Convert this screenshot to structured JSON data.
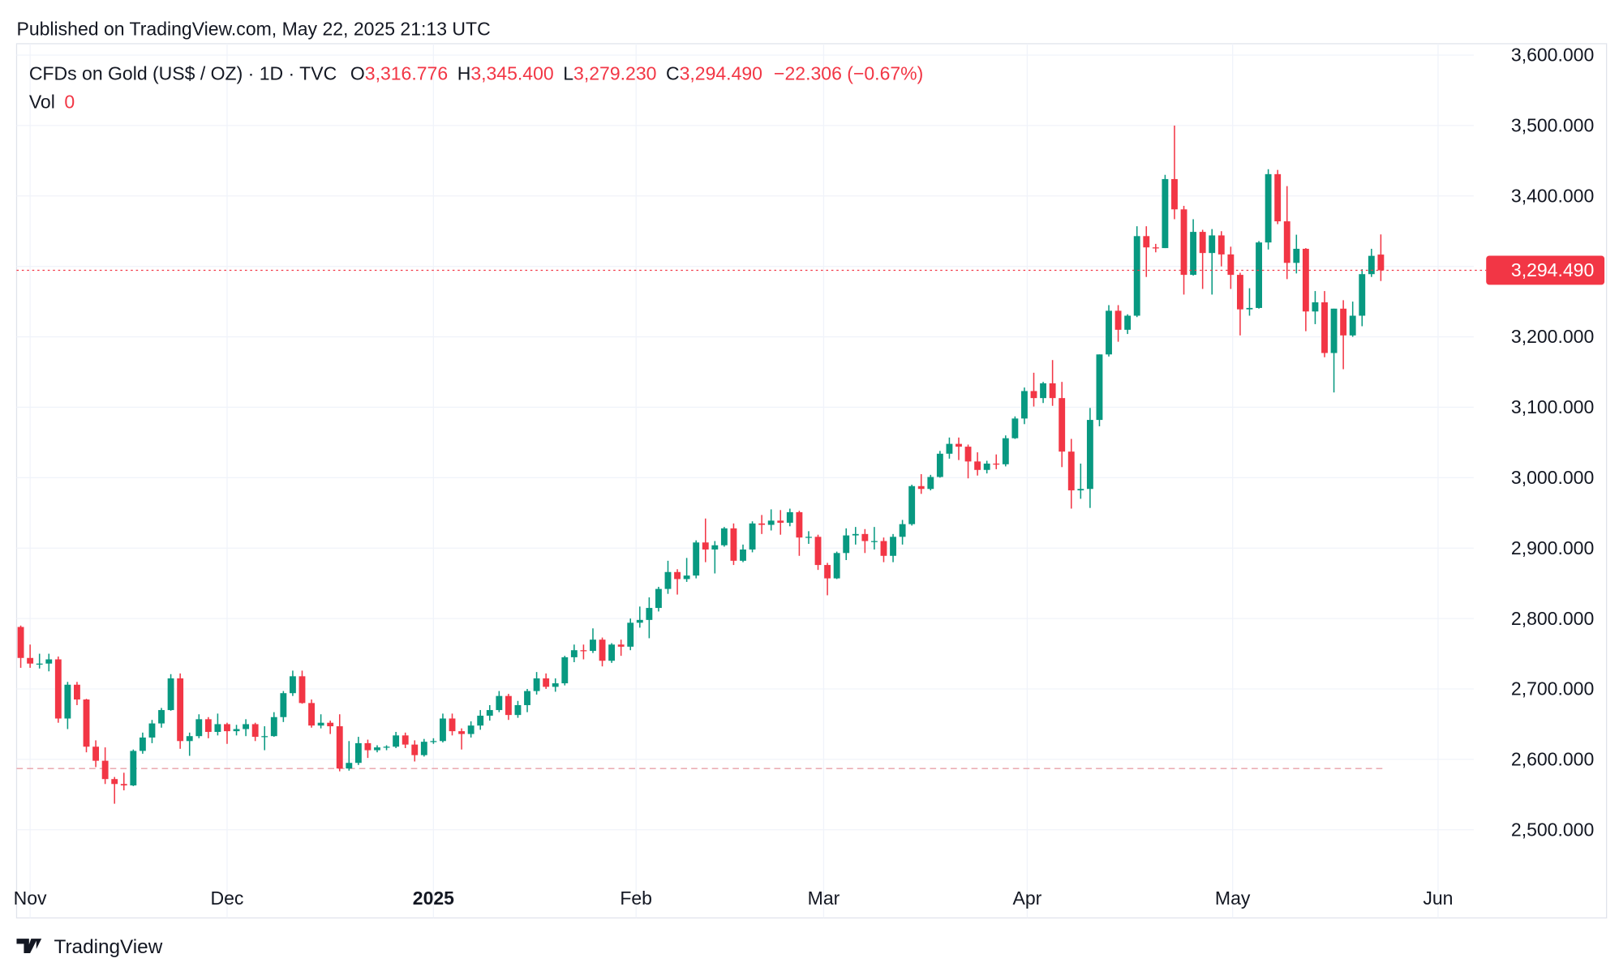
{
  "header": {
    "published": "Published on TradingView.com, May 22, 2025 21:13 UTC"
  },
  "footer": {
    "brand": "TradingView"
  },
  "chart_data": {
    "type": "candlestick",
    "title": "CFDs on Gold (US$ / OZ) · 1D · TVC",
    "ohlc_labels": [
      "O",
      "H",
      "L",
      "C"
    ],
    "ohlc_values": [
      "3,316.776",
      "3,345.400",
      "3,279.230",
      "3,294.490"
    ],
    "change": "−22.306 (−0.67%)",
    "volume_label": "Vol",
    "volume": 0,
    "last_price_label": "3,294.490",
    "up_color": "#089981",
    "down_color": "#f23645",
    "reference_line": 2587,
    "grid": true,
    "xlim": [
      -0.44,
      154.9
    ],
    "xticks": [
      {
        "value": 1,
        "label": "Nov"
      },
      {
        "value": 22,
        "label": "Dec"
      },
      {
        "value": 44,
        "label": "2025"
      },
      {
        "value": 65.6,
        "label": "Feb"
      },
      {
        "value": 85.6,
        "label": "Mar"
      },
      {
        "value": 107.3,
        "label": "Apr"
      },
      {
        "value": 129.2,
        "label": "May"
      },
      {
        "value": 151.1,
        "label": "Jun"
      }
    ],
    "ylim": [
      2374.8,
      3616.2
    ],
    "yticks": [
      {
        "value": 2500,
        "label": "2,500.000"
      },
      {
        "value": 2600,
        "label": "2,600.000"
      },
      {
        "value": 2700,
        "label": "2,700.000"
      },
      {
        "value": 2800,
        "label": "2,800.000"
      },
      {
        "value": 2900,
        "label": "2,900.000"
      },
      {
        "value": 3000,
        "label": "3,000.000"
      },
      {
        "value": 3100,
        "label": "3,100.000"
      },
      {
        "value": 3200,
        "label": "3,200.000"
      },
      {
        "value": 3300,
        "label": "3,300.000"
      },
      {
        "value": 3400,
        "label": "3,400.000"
      },
      {
        "value": 3500,
        "label": "3,500.000"
      },
      {
        "value": 3600,
        "label": "3,600.000"
      }
    ],
    "open": [
      2788,
      2744,
      2736,
      2736,
      2742,
      2658,
      2706,
      2685,
      2618,
      2598,
      2572,
      2565,
      2563,
      2612,
      2631,
      2651,
      2670,
      2715,
      2626,
      2633,
      2657,
      2639,
      2650,
      2640,
      2643,
      2650,
      2632,
      2633,
      2660,
      2694,
      2718,
      2680,
      2648,
      2652,
      2647,
      2587,
      2595,
      2623,
      2613,
      2617,
      2618,
      2634,
      2621,
      2606,
      2625,
      2626,
      2658,
      2640,
      2636,
      2648,
      2662,
      2670,
      2690,
      2663,
      2677,
      2697,
      2715,
      2703,
      2708,
      2745,
      2755,
      2754,
      2770,
      2740,
      2763,
      2760,
      2794,
      2798,
      2815,
      2842,
      2866,
      2856,
      2861,
      2908,
      2898,
      2904,
      2928,
      2882,
      2898,
      2935,
      2933,
      2939,
      2936,
      2951,
      2915,
      2916,
      2876,
      2857,
      2893,
      2918,
      2920,
      2910,
      2910,
      2889,
      2916,
      2934,
      2988,
      2984,
      3001,
      3034,
      3048,
      3044,
      3023,
      3011,
      3020,
      3019,
      3056,
      3084,
      3123,
      3113,
      3134,
      3113,
      3037,
      2982,
      2984,
      3082,
      3175,
      3237,
      3210,
      3230,
      3343,
      3327,
      3326,
      3424,
      3381,
      3288,
      3349,
      3319,
      3344,
      3317,
      3288,
      3239,
      3241,
      3334,
      3431,
      3364,
      3305,
      3325,
      3236,
      3249,
      3177,
      3240,
      3202,
      3230,
      3289,
      3316.776
    ],
    "high": [
      2790,
      2763,
      2750,
      2750,
      2746,
      2710,
      2710,
      2686,
      2627,
      2617,
      2575,
      2581,
      2614,
      2638,
      2656,
      2673,
      2721,
      2722,
      2638,
      2664,
      2660,
      2665,
      2652,
      2649,
      2657,
      2652,
      2647,
      2667,
      2697,
      2726,
      2726,
      2685,
      2664,
      2655,
      2664,
      2626,
      2632,
      2628,
      2620,
      2620,
      2639,
      2638,
      2627,
      2629,
      2630,
      2665,
      2665,
      2644,
      2654,
      2670,
      2677,
      2697,
      2693,
      2683,
      2700,
      2724,
      2722,
      2715,
      2747,
      2763,
      2763,
      2786,
      2773,
      2765,
      2770,
      2800,
      2817,
      2830,
      2845,
      2882,
      2870,
      2886,
      2911,
      2942,
      2910,
      2930,
      2935,
      2905,
      2938,
      2947,
      2955,
      2954,
      2956,
      2953,
      2924,
      2919,
      2879,
      2895,
      2928,
      2930,
      2927,
      2930,
      2915,
      2920,
      2940,
      2990,
      3005,
      3004,
      3038,
      3057,
      3057,
      3047,
      3036,
      3024,
      3033,
      3060,
      3087,
      3128,
      3149,
      3136,
      3167,
      3136,
      3055,
      3020,
      3099,
      3175,
      3245,
      3245,
      3232,
      3357,
      3357,
      3332,
      3430,
      3500,
      3386,
      3367,
      3352,
      3353,
      3350,
      3328,
      3291,
      3269,
      3336,
      3438,
      3437,
      3414,
      3345,
      3326,
      3265,
      3265,
      3240,
      3252,
      3250,
      3296,
      3325,
      3345.4
    ],
    "low": [
      2730,
      2730,
      2729,
      2725,
      2652,
      2643,
      2677,
      2610,
      2589,
      2565,
      2537,
      2556,
      2562,
      2608,
      2623,
      2645,
      2669,
      2615,
      2605,
      2630,
      2630,
      2634,
      2622,
      2634,
      2633,
      2626,
      2613,
      2632,
      2653,
      2690,
      2679,
      2645,
      2644,
      2636,
      2583,
      2584,
      2592,
      2602,
      2610,
      2613,
      2616,
      2616,
      2597,
      2604,
      2622,
      2624,
      2634,
      2614,
      2631,
      2642,
      2655,
      2667,
      2656,
      2659,
      2667,
      2692,
      2700,
      2696,
      2705,
      2738,
      2742,
      2751,
      2732,
      2737,
      2747,
      2755,
      2787,
      2772,
      2810,
      2835,
      2834,
      2852,
      2857,
      2880,
      2864,
      2902,
      2876,
      2880,
      2894,
      2920,
      2925,
      2919,
      2931,
      2889,
      2906,
      2869,
      2833,
      2856,
      2883,
      2905,
      2893,
      2898,
      2880,
      2880,
      2905,
      2932,
      2977,
      2982,
      3000,
      3027,
      3025,
      2999,
      3003,
      3006,
      3012,
      3016,
      3055,
      3076,
      3101,
      3106,
      3102,
      3015,
      2956,
      2970,
      2957,
      3073,
      3172,
      3193,
      3204,
      3228,
      3285,
      3320,
      3326,
      3367,
      3260,
      3287,
      3268,
      3260,
      3300,
      3268,
      3202,
      3230,
      3240,
      3324,
      3360,
      3282,
      3290,
      3208,
      3218,
      3171,
      3121,
      3154,
      3200,
      3215,
      3285,
      3279.23
    ],
    "close": [
      2744,
      2736,
      2736,
      2742,
      2658,
      2706,
      2685,
      2618,
      2598,
      2572,
      2565,
      2563,
      2612,
      2631,
      2651,
      2670,
      2715,
      2626,
      2633,
      2657,
      2639,
      2650,
      2640,
      2643,
      2650,
      2632,
      2633,
      2660,
      2694,
      2718,
      2680,
      2648,
      2652,
      2647,
      2587,
      2595,
      2623,
      2613,
      2617,
      2618,
      2634,
      2621,
      2606,
      2625,
      2626,
      2658,
      2640,
      2636,
      2648,
      2662,
      2670,
      2690,
      2663,
      2677,
      2697,
      2715,
      2703,
      2708,
      2745,
      2755,
      2754,
      2770,
      2740,
      2763,
      2760,
      2794,
      2798,
      2815,
      2842,
      2866,
      2856,
      2861,
      2908,
      2898,
      2904,
      2928,
      2882,
      2898,
      2935,
      2933,
      2939,
      2936,
      2951,
      2915,
      2916,
      2876,
      2857,
      2893,
      2918,
      2920,
      2910,
      2910,
      2889,
      2916,
      2934,
      2988,
      2984,
      3001,
      3034,
      3048,
      3044,
      3023,
      3011,
      3020,
      3019,
      3056,
      3084,
      3123,
      3113,
      3134,
      3113,
      3037,
      2982,
      2984,
      3082,
      3175,
      3237,
      3210,
      3230,
      3343,
      3327,
      3326,
      3424,
      3381,
      3288,
      3349,
      3319,
      3344,
      3317,
      3288,
      3239,
      3241,
      3334,
      3431,
      3364,
      3305,
      3325,
      3236,
      3249,
      3177,
      3240,
      3202,
      3230,
      3289,
      3315,
      3294.49
    ]
  }
}
